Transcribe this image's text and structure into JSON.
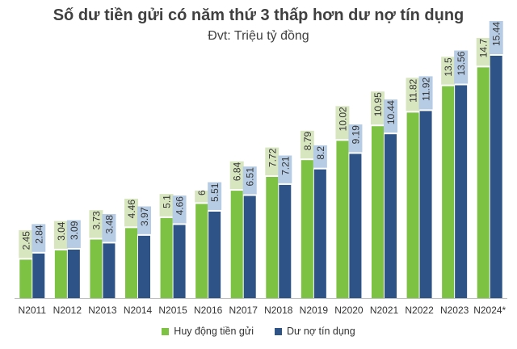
{
  "chart_data": {
    "type": "bar",
    "title": "Số dư tiền gửi có năm thứ 3 thấp hơn dư nợ tín dụng",
    "subtitle": "Đvt: Triệu tỷ đồng",
    "categories": [
      "N2011",
      "N2012",
      "N2013",
      "N2014",
      "N2015",
      "N2016",
      "N2017",
      "N2018",
      "N2019",
      "N2020",
      "N2021",
      "N2022",
      "N2023",
      "N2024*"
    ],
    "series": [
      {
        "name": "Huy động tiền gửi",
        "color": "#7dc242",
        "label_bg": "#d8e6c0",
        "values": [
          2.45,
          3.04,
          3.73,
          4.46,
          5.1,
          6,
          6.84,
          7.72,
          8.79,
          10.02,
          10.95,
          11.82,
          13.5,
          14.7
        ]
      },
      {
        "name": "Dư nợ tín dụng",
        "color": "#2e5487",
        "label_bg": "#b6cce4",
        "values": [
          2.84,
          3.09,
          3.48,
          3.97,
          4.66,
          5.51,
          6.51,
          7.21,
          8.2,
          9.19,
          10.44,
          11.92,
          13.56,
          15.44
        ]
      }
    ],
    "value_labels": [
      [
        "2.45",
        "3.04",
        "3.73",
        "4.46",
        "5.1",
        "6",
        "6.84",
        "7.72",
        "8.79",
        "10.02",
        "10.95",
        "11.82",
        "13.5",
        "14.7"
      ],
      [
        "2.84",
        "3.09",
        "3.48",
        "3.97",
        "4.66",
        "5.51",
        "6.51",
        "7.21",
        "8.2",
        "9.19",
        "10.44",
        "11.92",
        "13.56",
        "15.44"
      ]
    ],
    "ylim": [
      0,
      18
    ],
    "grid": false,
    "legend_position": "bottom"
  }
}
